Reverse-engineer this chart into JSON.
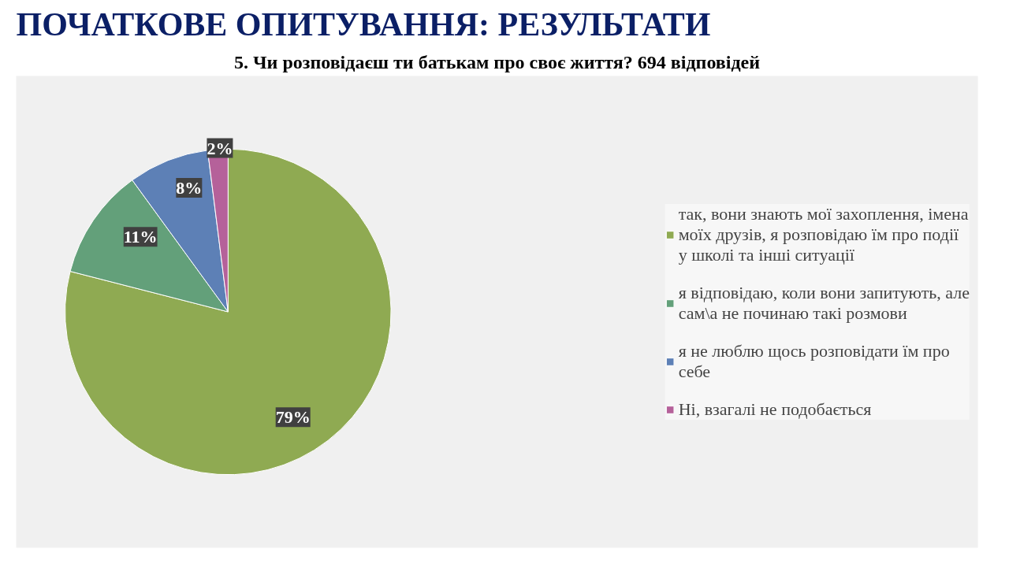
{
  "chart_data": {
    "type": "pie",
    "title": "ПОЧАТКОВЕ ОПИТУВАННЯ: РЕЗУЛЬТАТИ",
    "subtitle": "5. Чи розповідаєш ти батькам про своє життя? 694 відповідей",
    "categories": [
      "так, вони знають мої захоплення, імена моїх друзів, я розповідаю їм про події у школі та інші ситуації",
      "я відповідаю, коли вони запитують, але сам\\а не починаю такі розмови",
      "я не люблю щось розповідати їм про себе",
      "Ні, взагалі не подобається"
    ],
    "values": [
      79,
      11,
      8,
      2
    ],
    "value_labels": [
      "79%",
      "11%",
      "8%",
      "2%"
    ],
    "colors": [
      "#8faa52",
      "#63a07a",
      "#5d80b6",
      "#b5619a"
    ],
    "legend": "right"
  }
}
